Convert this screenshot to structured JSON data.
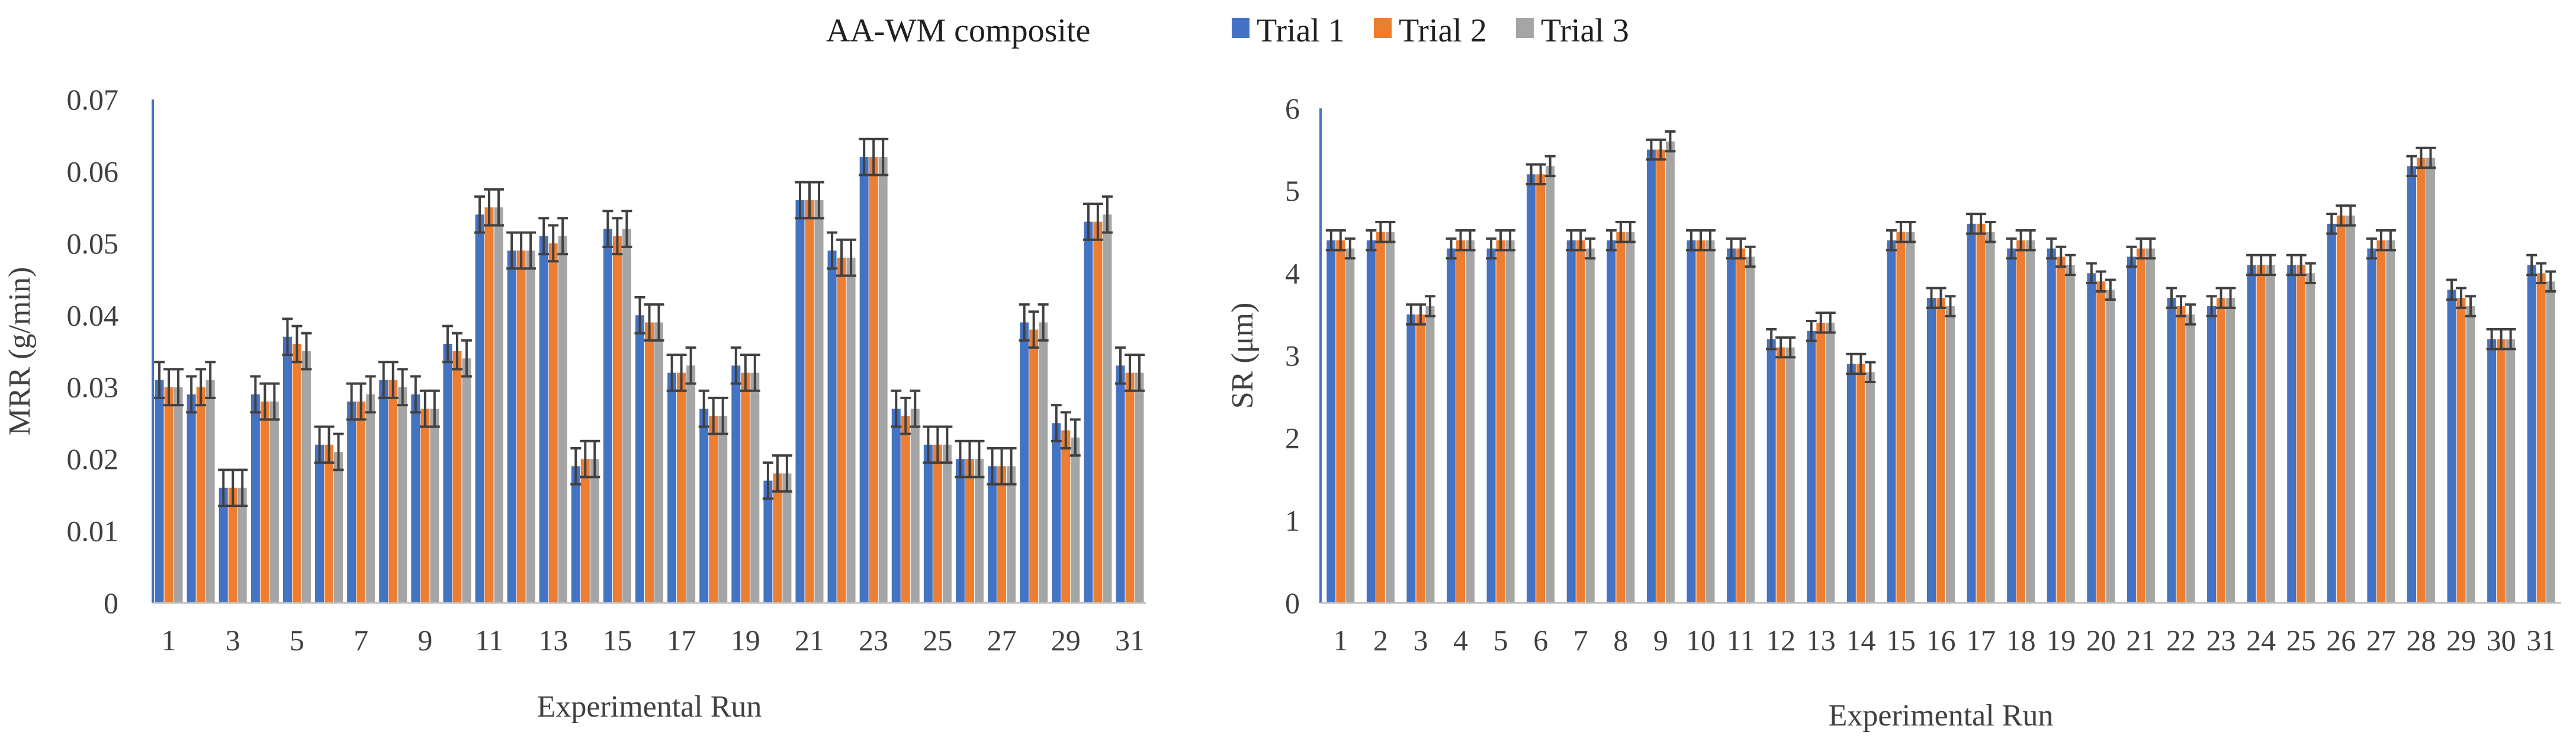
{
  "legend": {
    "title": "AA-WM composite",
    "entries": [
      {
        "name": "Trial 1",
        "color": "#4472C4"
      },
      {
        "name": "Trial 2",
        "color": "#ED7D31"
      },
      {
        "name": "Trial 3",
        "color": "#A5A5A5"
      }
    ]
  },
  "chart_data": [
    {
      "type": "bar",
      "title": "",
      "xlabel": "Experimental Run",
      "ylabel": "MRR (g/min)",
      "ylim": [
        0,
        0.07
      ],
      "yticks": [
        0,
        0.01,
        0.02,
        0.03,
        0.04,
        0.05,
        0.06,
        0.07
      ],
      "ytick_labels": [
        "0",
        "0.01",
        "0.02",
        "0.03",
        "0.04",
        "0.05",
        "0.06",
        "0.07"
      ],
      "categories": [
        "1",
        "2",
        "3",
        "4",
        "5",
        "6",
        "7",
        "8",
        "9",
        "10",
        "11",
        "12",
        "13",
        "14",
        "15",
        "16",
        "17",
        "18",
        "19",
        "20",
        "21",
        "22",
        "23",
        "24",
        "25",
        "26",
        "27",
        "28",
        "29",
        "30",
        "31"
      ],
      "xtick_labels": [
        "1",
        "",
        "3",
        "",
        "5",
        "",
        "7",
        "",
        "9",
        "",
        "11",
        "",
        "13",
        "",
        "15",
        "",
        "17",
        "",
        "19",
        "",
        "21",
        "",
        "23",
        "",
        "25",
        "",
        "27",
        "",
        "29",
        "",
        "31"
      ],
      "grid": false,
      "error_bars": true,
      "series": [
        {
          "name": "Trial 1",
          "values": [
            0.031,
            0.029,
            0.016,
            0.029,
            0.037,
            0.022,
            0.028,
            0.031,
            0.029,
            0.036,
            0.054,
            0.049,
            0.051,
            0.019,
            0.052,
            0.04,
            0.032,
            0.027,
            0.033,
            0.017,
            0.056,
            0.049,
            0.062,
            0.027,
            0.022,
            0.02,
            0.019,
            0.039,
            0.025,
            0.053,
            0.033
          ]
        },
        {
          "name": "Trial 2",
          "values": [
            0.03,
            0.03,
            0.016,
            0.028,
            0.036,
            0.022,
            0.028,
            0.031,
            0.027,
            0.035,
            0.055,
            0.049,
            0.05,
            0.02,
            0.051,
            0.039,
            0.032,
            0.026,
            0.032,
            0.018,
            0.056,
            0.048,
            0.062,
            0.026,
            0.022,
            0.02,
            0.019,
            0.038,
            0.024,
            0.053,
            0.032
          ]
        },
        {
          "name": "Trial 3",
          "values": [
            0.03,
            0.031,
            0.016,
            0.028,
            0.035,
            0.021,
            0.029,
            0.03,
            0.027,
            0.034,
            0.055,
            0.049,
            0.051,
            0.02,
            0.052,
            0.039,
            0.033,
            0.026,
            0.032,
            0.018,
            0.056,
            0.048,
            0.062,
            0.027,
            0.022,
            0.02,
            0.019,
            0.039,
            0.023,
            0.054,
            0.032
          ]
        }
      ],
      "error": 0.0025
    },
    {
      "type": "bar",
      "title": "",
      "xlabel": "Experimental Run",
      "ylabel": "SR (μm)",
      "ylim": [
        0,
        6
      ],
      "yticks": [
        0,
        1,
        2,
        3,
        4,
        5,
        6
      ],
      "ytick_labels": [
        "0",
        "1",
        "2",
        "3",
        "4",
        "5",
        "6"
      ],
      "categories": [
        "1",
        "2",
        "3",
        "4",
        "5",
        "6",
        "7",
        "8",
        "9",
        "10",
        "11",
        "12",
        "13",
        "14",
        "15",
        "16",
        "17",
        "18",
        "19",
        "20",
        "21",
        "22",
        "23",
        "24",
        "25",
        "26",
        "27",
        "28",
        "29",
        "30",
        "31"
      ],
      "xtick_labels": [
        "1",
        "2",
        "3",
        "4",
        "5",
        "6",
        "7",
        "8",
        "9",
        "10",
        "11",
        "12",
        "13",
        "14",
        "15",
        "16",
        "17",
        "18",
        "19",
        "20",
        "21",
        "22",
        "23",
        "24",
        "25",
        "26",
        "27",
        "28",
        "29",
        "30",
        "31"
      ],
      "grid": false,
      "error_bars": true,
      "series": [
        {
          "name": "Trial 1",
          "values": [
            4.4,
            4.4,
            3.5,
            4.3,
            4.3,
            5.2,
            4.4,
            4.4,
            5.5,
            4.4,
            4.3,
            3.2,
            3.3,
            2.9,
            4.4,
            3.7,
            4.6,
            4.3,
            4.3,
            4.0,
            4.2,
            3.7,
            3.6,
            4.1,
            4.1,
            4.6,
            4.3,
            5.3,
            3.8,
            3.2,
            4.1
          ]
        },
        {
          "name": "Trial 2",
          "values": [
            4.4,
            4.5,
            3.5,
            4.4,
            4.4,
            5.2,
            4.4,
            4.5,
            5.5,
            4.4,
            4.3,
            3.1,
            3.4,
            2.9,
            4.5,
            3.7,
            4.6,
            4.4,
            4.2,
            3.9,
            4.3,
            3.6,
            3.7,
            4.1,
            4.1,
            4.7,
            4.4,
            5.4,
            3.7,
            3.2,
            4.0
          ]
        },
        {
          "name": "Trial 3",
          "values": [
            4.3,
            4.5,
            3.6,
            4.4,
            4.4,
            5.3,
            4.3,
            4.5,
            5.6,
            4.4,
            4.2,
            3.1,
            3.4,
            2.8,
            4.5,
            3.6,
            4.5,
            4.4,
            4.1,
            3.8,
            4.3,
            3.5,
            3.7,
            4.1,
            4.0,
            4.7,
            4.4,
            5.4,
            3.6,
            3.2,
            3.9
          ]
        }
      ],
      "error": 0.12
    }
  ]
}
